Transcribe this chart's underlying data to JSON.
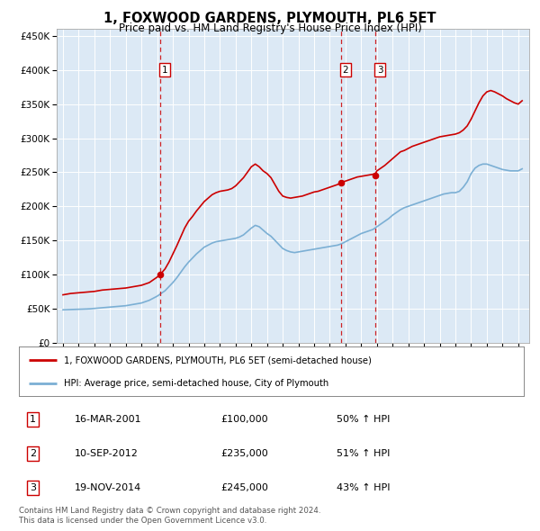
{
  "title": "1, FOXWOOD GARDENS, PLYMOUTH, PL6 5ET",
  "subtitle": "Price paid vs. HM Land Registry's House Price Index (HPI)",
  "bg_color": "#dce9f5",
  "red_line_color": "#cc0000",
  "blue_line_color": "#7bafd4",
  "dashed_vline_color": "#cc0000",
  "legend_label_red": "1, FOXWOOD GARDENS, PLYMOUTH, PL6 5ET (semi-detached house)",
  "legend_label_blue": "HPI: Average price, semi-detached house, City of Plymouth",
  "footer_text": "Contains HM Land Registry data © Crown copyright and database right 2024.\nThis data is licensed under the Open Government Licence v3.0.",
  "transactions": [
    {
      "num": 1,
      "date": "16-MAR-2001",
      "price": "£100,000",
      "hpi": "50% ↑ HPI",
      "year": 2001.2
    },
    {
      "num": 2,
      "date": "10-SEP-2012",
      "price": "£235,000",
      "hpi": "51% ↑ HPI",
      "year": 2012.7
    },
    {
      "num": 3,
      "date": "19-NOV-2014",
      "price": "£245,000",
      "hpi": "43% ↑ HPI",
      "year": 2014.9
    }
  ],
  "ylim": [
    0,
    460000
  ],
  "yticks": [
    0,
    50000,
    100000,
    150000,
    200000,
    250000,
    300000,
    350000,
    400000,
    450000
  ],
  "xlim_start": 1994.6,
  "xlim_end": 2024.7,
  "red_x": [
    1995.0,
    1995.25,
    1995.5,
    1995.75,
    1996.0,
    1996.25,
    1996.5,
    1996.75,
    1997.0,
    1997.25,
    1997.5,
    1997.75,
    1998.0,
    1998.25,
    1998.5,
    1998.75,
    1999.0,
    1999.25,
    1999.5,
    1999.75,
    2000.0,
    2000.25,
    2000.5,
    2000.75,
    2001.0,
    2001.2,
    2001.5,
    2001.75,
    2002.0,
    2002.25,
    2002.5,
    2002.75,
    2003.0,
    2003.25,
    2003.5,
    2003.75,
    2004.0,
    2004.25,
    2004.5,
    2004.75,
    2005.0,
    2005.25,
    2005.5,
    2005.75,
    2006.0,
    2006.25,
    2006.5,
    2006.75,
    2007.0,
    2007.25,
    2007.5,
    2007.75,
    2008.0,
    2008.25,
    2008.5,
    2008.75,
    2009.0,
    2009.25,
    2009.5,
    2009.75,
    2010.0,
    2010.25,
    2010.5,
    2010.75,
    2011.0,
    2011.25,
    2011.5,
    2011.75,
    2012.0,
    2012.25,
    2012.5,
    2012.7,
    2013.0,
    2013.25,
    2013.5,
    2013.75,
    2014.0,
    2014.25,
    2014.5,
    2014.75,
    2014.9,
    2015.0,
    2015.25,
    2015.5,
    2015.75,
    2016.0,
    2016.25,
    2016.5,
    2016.75,
    2017.0,
    2017.25,
    2017.5,
    2017.75,
    2018.0,
    2018.25,
    2018.5,
    2018.75,
    2019.0,
    2019.25,
    2019.5,
    2019.75,
    2020.0,
    2020.25,
    2020.5,
    2020.75,
    2021.0,
    2021.25,
    2021.5,
    2021.75,
    2022.0,
    2022.25,
    2022.5,
    2022.75,
    2023.0,
    2023.25,
    2023.5,
    2023.75,
    2024.0,
    2024.25
  ],
  "red_y": [
    70000,
    71000,
    72000,
    72500,
    73000,
    73500,
    74000,
    74500,
    75000,
    76000,
    77000,
    77500,
    78000,
    78500,
    79000,
    79500,
    80000,
    81000,
    82000,
    83000,
    84000,
    86000,
    88000,
    92000,
    96000,
    100000,
    108000,
    118000,
    130000,
    142000,
    155000,
    168000,
    178000,
    185000,
    193000,
    200000,
    207000,
    212000,
    217000,
    220000,
    222000,
    223000,
    224000,
    226000,
    230000,
    236000,
    242000,
    250000,
    258000,
    262000,
    258000,
    252000,
    248000,
    242000,
    232000,
    222000,
    215000,
    213000,
    212000,
    213000,
    214000,
    215000,
    217000,
    219000,
    221000,
    222000,
    224000,
    226000,
    228000,
    230000,
    232000,
    235000,
    237000,
    239000,
    241000,
    243000,
    244000,
    245000,
    246000,
    247000,
    248000,
    252000,
    256000,
    260000,
    265000,
    270000,
    275000,
    280000,
    282000,
    285000,
    288000,
    290000,
    292000,
    294000,
    296000,
    298000,
    300000,
    302000,
    303000,
    304000,
    305000,
    306000,
    308000,
    312000,
    318000,
    328000,
    340000,
    352000,
    362000,
    368000,
    370000,
    368000,
    365000,
    362000,
    358000,
    355000,
    352000,
    350000,
    355000
  ],
  "blue_x": [
    1995.0,
    1995.25,
    1995.5,
    1995.75,
    1996.0,
    1996.25,
    1996.5,
    1996.75,
    1997.0,
    1997.25,
    1997.5,
    1997.75,
    1998.0,
    1998.25,
    1998.5,
    1998.75,
    1999.0,
    1999.25,
    1999.5,
    1999.75,
    2000.0,
    2000.25,
    2000.5,
    2000.75,
    2001.0,
    2001.25,
    2001.5,
    2001.75,
    2002.0,
    2002.25,
    2002.5,
    2002.75,
    2003.0,
    2003.25,
    2003.5,
    2003.75,
    2004.0,
    2004.25,
    2004.5,
    2004.75,
    2005.0,
    2005.25,
    2005.5,
    2005.75,
    2006.0,
    2006.25,
    2006.5,
    2006.75,
    2007.0,
    2007.25,
    2007.5,
    2007.75,
    2008.0,
    2008.25,
    2008.5,
    2008.75,
    2009.0,
    2009.25,
    2009.5,
    2009.75,
    2010.0,
    2010.25,
    2010.5,
    2010.75,
    2011.0,
    2011.25,
    2011.5,
    2011.75,
    2012.0,
    2012.25,
    2012.5,
    2012.75,
    2013.0,
    2013.25,
    2013.5,
    2013.75,
    2014.0,
    2014.25,
    2014.5,
    2014.75,
    2015.0,
    2015.25,
    2015.5,
    2015.75,
    2016.0,
    2016.25,
    2016.5,
    2016.75,
    2017.0,
    2017.25,
    2017.5,
    2017.75,
    2018.0,
    2018.25,
    2018.5,
    2018.75,
    2019.0,
    2019.25,
    2019.5,
    2019.75,
    2020.0,
    2020.25,
    2020.5,
    2020.75,
    2021.0,
    2021.25,
    2021.5,
    2021.75,
    2022.0,
    2022.25,
    2022.5,
    2022.75,
    2023.0,
    2023.25,
    2023.5,
    2023.75,
    2024.0,
    2024.25
  ],
  "blue_y": [
    48000,
    48200,
    48400,
    48600,
    48800,
    49000,
    49200,
    49500,
    50000,
    50500,
    51000,
    51500,
    52000,
    52500,
    53000,
    53500,
    54000,
    55000,
    56000,
    57000,
    58000,
    60000,
    62000,
    65000,
    68000,
    72000,
    76000,
    82000,
    88000,
    95000,
    103000,
    111000,
    118000,
    124000,
    130000,
    135000,
    140000,
    143000,
    146000,
    148000,
    149000,
    150000,
    151000,
    152000,
    153000,
    155000,
    158000,
    163000,
    168000,
    172000,
    170000,
    165000,
    160000,
    156000,
    150000,
    144000,
    138000,
    135000,
    133000,
    132000,
    133000,
    134000,
    135000,
    136000,
    137000,
    138000,
    139000,
    140000,
    141000,
    142000,
    143000,
    145000,
    148000,
    151000,
    154000,
    157000,
    160000,
    162000,
    164000,
    166000,
    170000,
    174000,
    178000,
    182000,
    187000,
    191000,
    195000,
    198000,
    200000,
    202000,
    204000,
    206000,
    208000,
    210000,
    212000,
    214000,
    216000,
    218000,
    219000,
    220000,
    220000,
    222000,
    228000,
    236000,
    248000,
    256000,
    260000,
    262000,
    262000,
    260000,
    258000,
    256000,
    254000,
    253000,
    252000,
    252000,
    252000,
    255000
  ]
}
